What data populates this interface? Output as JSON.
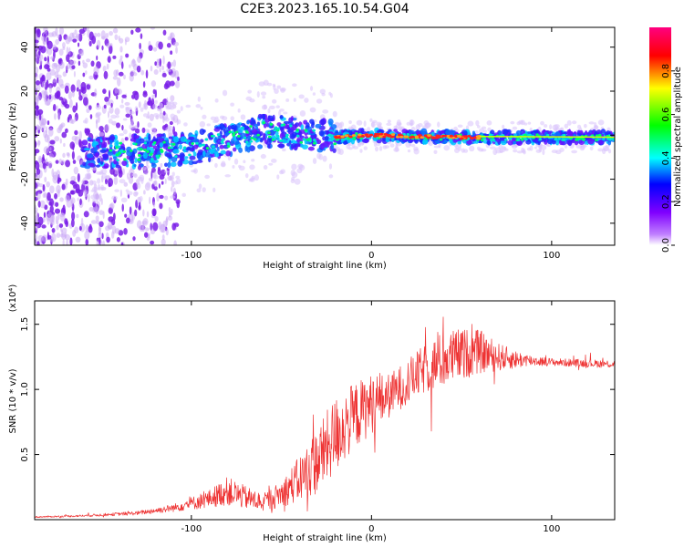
{
  "title": "C2E3.2023.165.10.54.G04",
  "chart_data": [
    {
      "type": "heatmap",
      "name": "spectrogram",
      "xlabel": "Height of straight line (km)",
      "ylabel": "Frequency (Hz)",
      "xlim": [
        -187,
        135
      ],
      "ylim": [
        -50,
        49
      ],
      "xticks": [
        -100,
        0,
        100
      ],
      "xtick_labels": [
        "-100",
        "0",
        "100"
      ],
      "yticks": [
        -40,
        -20,
        0,
        20,
        40
      ],
      "ytick_labels": [
        "-40",
        "-20",
        "0",
        "20",
        "40"
      ],
      "colorbar": {
        "label": "Normalized spectral amplitude",
        "range": [
          0,
          1
        ],
        "ticks": [
          0.0,
          0.2,
          0.4,
          0.6,
          0.8
        ],
        "tick_labels": [
          "0.0",
          "0.2",
          "0.4",
          "0.6",
          "0.8"
        ],
        "colormap": [
          "#ffffff",
          "#8000ff",
          "#0000ff",
          "#00ffff",
          "#00ff00",
          "#ffff00",
          "#ff0000",
          "#ff0080"
        ]
      },
      "features": {
        "noise_region_x": [
          -187,
          -120
        ],
        "band_center_hz": [
          {
            "x": -150,
            "y": -8
          },
          {
            "x": -100,
            "y": -6
          },
          {
            "x": -60,
            "y": 2
          },
          {
            "x": -30,
            "y": 0
          },
          {
            "x": -20,
            "y": -1
          },
          {
            "x": 0,
            "y": 0
          },
          {
            "x": 50,
            "y": -1
          },
          {
            "x": 100,
            "y": -1
          },
          {
            "x": 135,
            "y": -1
          }
        ],
        "peak_region_x": [
          -20,
          60
        ]
      }
    },
    {
      "type": "line",
      "name": "snr",
      "xlabel": "Height of straight line (km)",
      "ylabel": "SNR (10 * v/v)",
      "y_multiplier": "(x10⁴)",
      "xlim": [
        -187,
        135
      ],
      "ylim": [
        0,
        16800
      ],
      "xticks": [
        -100,
        0,
        100
      ],
      "xtick_labels": [
        "-100",
        "0",
        "100"
      ],
      "yticks": [
        5000,
        10000,
        15000
      ],
      "ytick_labels": [
        "0.5",
        "1.0",
        "1.5"
      ],
      "color": "#ee3333",
      "series": [
        {
          "name": "SNR",
          "x": [
            -187,
            -160,
            -130,
            -110,
            -90,
            -80,
            -70,
            -60,
            -50,
            -40,
            -30,
            -20,
            -10,
            0,
            10,
            20,
            30,
            40,
            50,
            60,
            70,
            80,
            90,
            100,
            110,
            120,
            135
          ],
          "y": [
            200,
            300,
            500,
            900,
            1600,
            2200,
            1700,
            1300,
            2000,
            3100,
            4500,
            6500,
            7900,
            8900,
            9500,
            10600,
            11600,
            12300,
            12700,
            12900,
            12500,
            12300,
            12200,
            12100,
            12050,
            12000,
            11950
          ],
          "noise": [
            50,
            80,
            150,
            300,
            700,
            1100,
            900,
            700,
            1000,
            1800,
            2600,
            3000,
            2600,
            2300,
            1700,
            1700,
            1900,
            2200,
            2000,
            1700,
            1100,
            700,
            400,
            300,
            300,
            300,
            300
          ]
        }
      ]
    }
  ]
}
